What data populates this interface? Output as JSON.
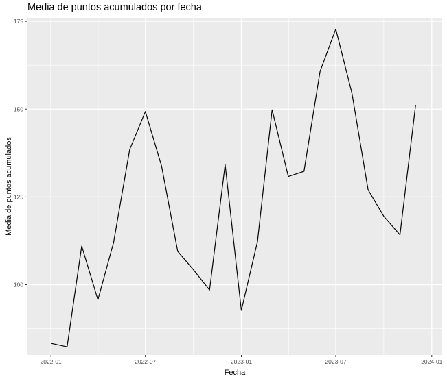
{
  "chart_data": {
    "type": "line",
    "title": "Media de puntos acumulados por fecha",
    "xlabel": "Fecha",
    "ylabel": "Media de puntos acumulados",
    "x_ticks": [
      "2022-01",
      "2022-07",
      "2023-01",
      "2023-07",
      "2024-01"
    ],
    "y_ticks": [
      100,
      125,
      150,
      175
    ],
    "xlim": [
      "2021-11-17",
      "2024-01-21"
    ],
    "ylim": [
      80,
      176
    ],
    "grid": true,
    "background": "#EBEBEB",
    "line_color": "#000000",
    "series": [
      {
        "x": [
          "2022-01-01",
          "2022-02-01",
          "2022-03-01",
          "2022-04-01",
          "2022-05-01",
          "2022-06-01",
          "2022-07-01",
          "2022-08-01",
          "2022-09-01",
          "2022-10-01",
          "2022-11-01",
          "2022-12-01",
          "2023-01-01",
          "2023-02-01",
          "2023-03-01",
          "2023-04-01",
          "2023-05-01",
          "2023-06-01",
          "2023-07-01",
          "2023-08-01",
          "2023-09-01",
          "2023-10-01",
          "2023-11-01",
          "2023-12-01"
        ],
        "values": [
          83.3,
          82.3,
          111,
          95.7,
          112,
          138.5,
          149.3,
          133.8,
          109.5,
          104.3,
          98.5,
          134.2,
          92.7,
          112.3,
          149.8,
          130.8,
          132.3,
          160.8,
          172.8,
          154.5,
          127,
          119.5,
          114.2,
          151.2
        ]
      }
    ]
  }
}
